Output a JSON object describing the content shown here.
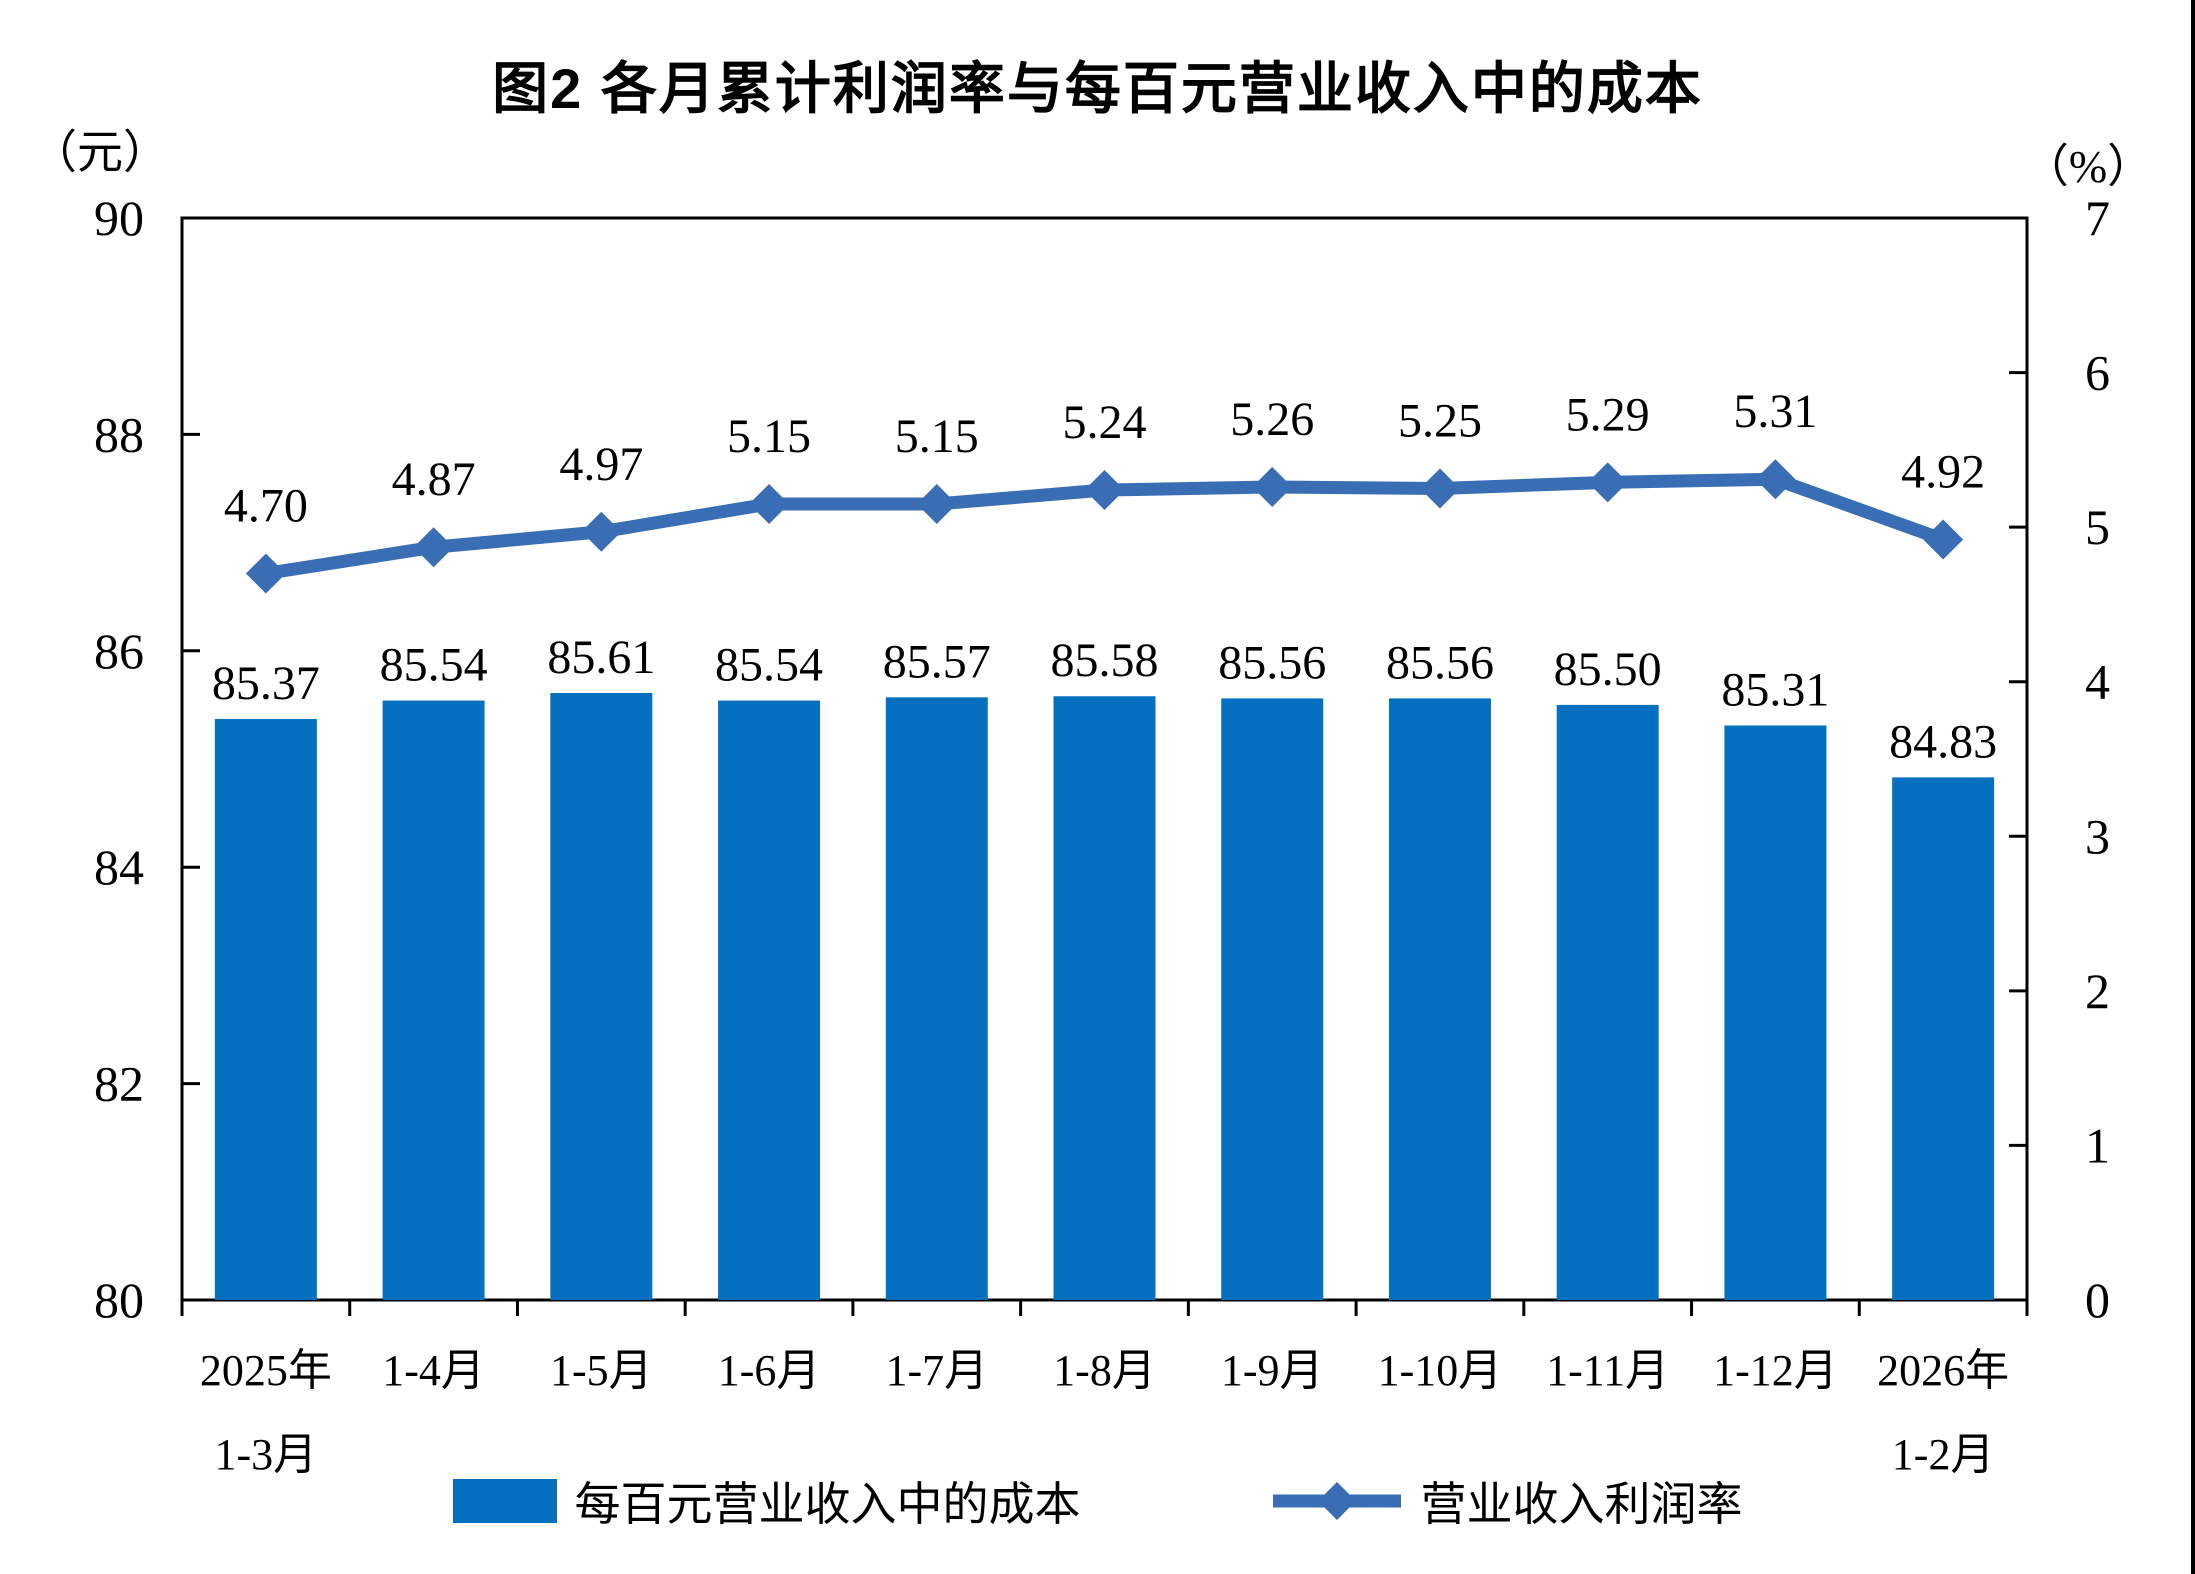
{
  "page": {
    "title": "图2 各月累计利润率与每百元营业收入中的成本"
  },
  "chart_data": {
    "type": "bar",
    "subtype": "combo-bar-line-dual-axis",
    "title": "图2 各月累计利润率与每百元营业收入中的成本",
    "categories": [
      "2025年\n1-3月",
      "1-4月",
      "1-5月",
      "1-6月",
      "1-7月",
      "1-8月",
      "1-9月",
      "1-10月",
      "1-11月",
      "1-12月",
      "2026年\n1-2月"
    ],
    "left_axis": {
      "unit": "（元）",
      "min": 80,
      "max": 90,
      "step": 2
    },
    "right_axis": {
      "unit": "（%）",
      "min": 0,
      "max": 7,
      "step": 1
    },
    "grid": false,
    "legend_position": "bottom",
    "series": [
      {
        "name": "每百元营业收入中的成本",
        "type": "bar",
        "axis": "left",
        "color": "#0670C0",
        "values": [
          85.37,
          85.54,
          85.61,
          85.54,
          85.57,
          85.58,
          85.56,
          85.56,
          85.5,
          85.31,
          84.83
        ],
        "labels": [
          "85.37",
          "85.54",
          "85.61",
          "85.54",
          "85.57",
          "85.58",
          "85.56",
          "85.56",
          "85.50",
          "85.31",
          "84.83"
        ]
      },
      {
        "name": "营业收入利润率",
        "type": "line",
        "axis": "right",
        "color": "#3A6EB4",
        "marker": "diamond",
        "values": [
          4.7,
          4.87,
          4.97,
          5.15,
          5.15,
          5.24,
          5.26,
          5.25,
          5.29,
          5.31,
          4.92
        ],
        "labels": [
          "4.70",
          "4.87",
          "4.97",
          "5.15",
          "5.15",
          "5.24",
          "5.26",
          "5.25",
          "5.29",
          "5.31",
          "4.92"
        ]
      }
    ]
  }
}
